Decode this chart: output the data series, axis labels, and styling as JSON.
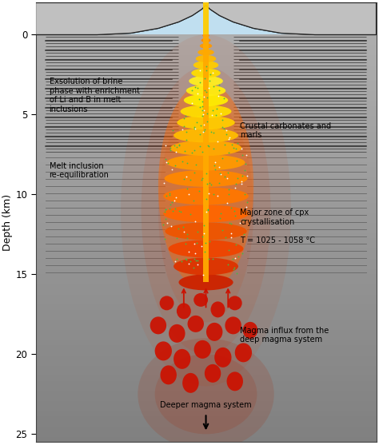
{
  "fig_width": 4.74,
  "fig_height": 5.57,
  "dpi": 100,
  "depth_min": -2.0,
  "depth_max": 25.5,
  "ylabel": "Depth (km)",
  "yticks": [
    0,
    5,
    10,
    15,
    20,
    25
  ]
}
